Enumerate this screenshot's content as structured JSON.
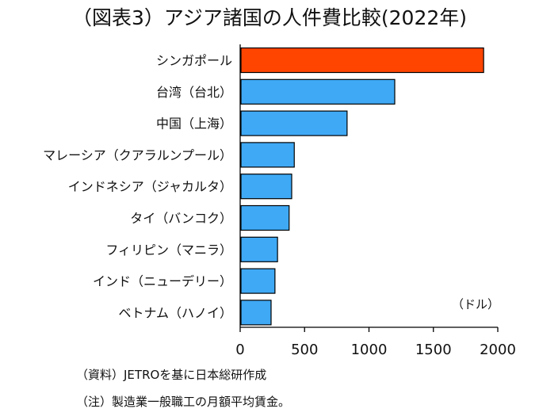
{
  "chart_data": {
    "type": "bar",
    "orientation": "horizontal",
    "title": "（図表3）アジア諸国の人件費比較(2022年)",
    "unit_label": "（ドル）",
    "categories": [
      "シンガポール",
      "台湾（台北）",
      "中国（上海）",
      "マレーシア（クアラルンプール）",
      "インドネシア（ジャカルタ）",
      "タイ（バンコク）",
      "フィリピン（マニラ）",
      "インド（ニューデリー）",
      "ベトナム（ハノイ）"
    ],
    "values": [
      1890,
      1200,
      830,
      420,
      400,
      380,
      290,
      270,
      240
    ],
    "bar_colors": [
      "#ff4500",
      "#3fa9f5",
      "#3fa9f5",
      "#3fa9f5",
      "#3fa9f5",
      "#3fa9f5",
      "#3fa9f5",
      "#3fa9f5",
      "#3fa9f5"
    ],
    "bar_stroke": "#000000",
    "xlim": [
      0,
      2000
    ],
    "xticks": [
      0,
      500,
      1000,
      1500,
      2000
    ],
    "grid": false,
    "legend": "none"
  },
  "notes": {
    "source": "（資料）JETROを基に日本総研作成",
    "note": "（注）製造業一般職工の月額平均賃金。"
  }
}
